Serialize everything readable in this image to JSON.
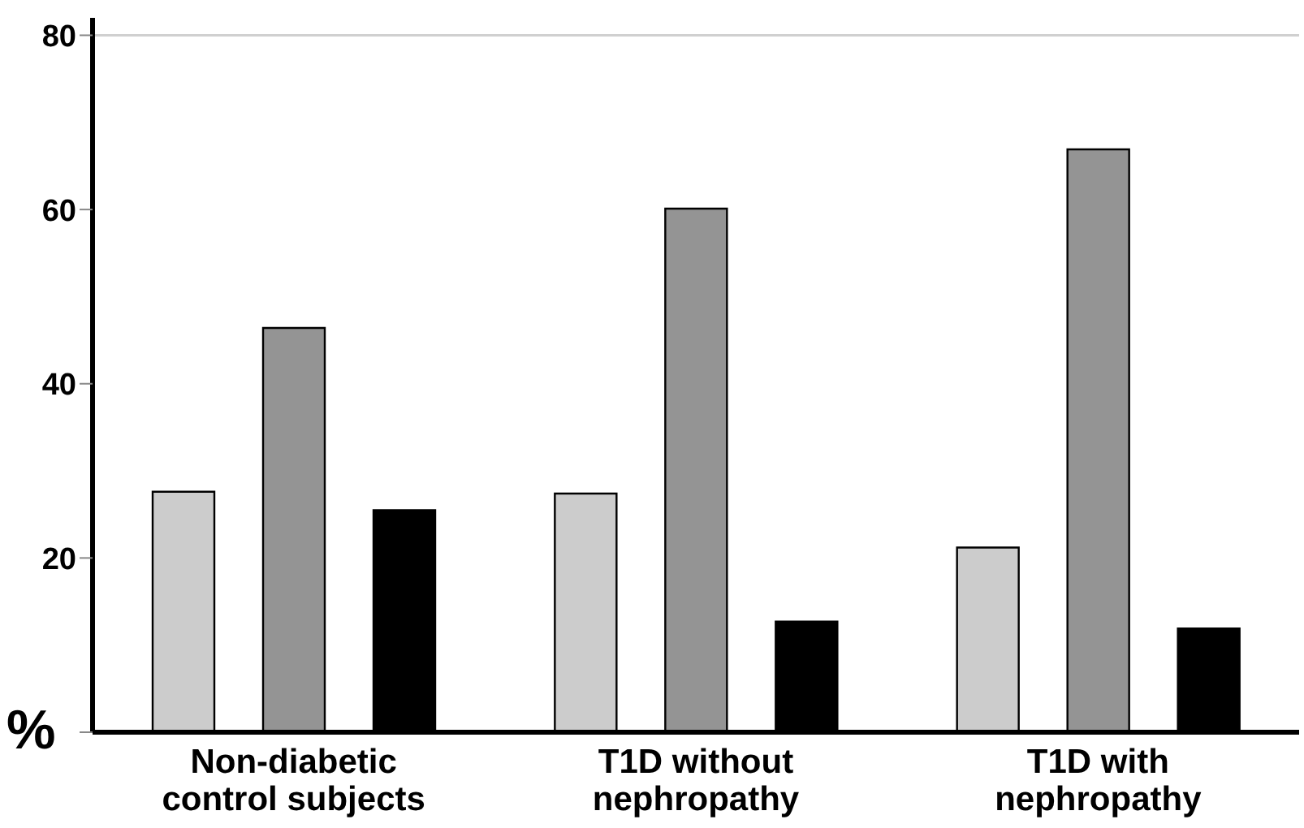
{
  "chart_data": {
    "type": "bar",
    "ylabel": "%",
    "categories": [
      "Non-diabetic control subjects",
      "T1D without nephropathy",
      "T1D with nephropathy"
    ],
    "series": [
      {
        "color": "#cccccc",
        "values": [
          27.6,
          27.4,
          21.2
        ]
      },
      {
        "color": "#949494",
        "values": [
          46.4,
          60.1,
          66.9
        ]
      },
      {
        "color": "#000000",
        "values": [
          25.5,
          12.7,
          11.9
        ]
      }
    ],
    "ylim": [
      0,
      82
    ],
    "yticks": [
      {
        "value": 0,
        "label": null
      },
      20,
      40,
      60,
      80
    ],
    "ref_lines": [
      {
        "axis": "y",
        "value": 80,
        "color": "#d0d0d0"
      }
    ],
    "grid": false,
    "legend": false
  }
}
